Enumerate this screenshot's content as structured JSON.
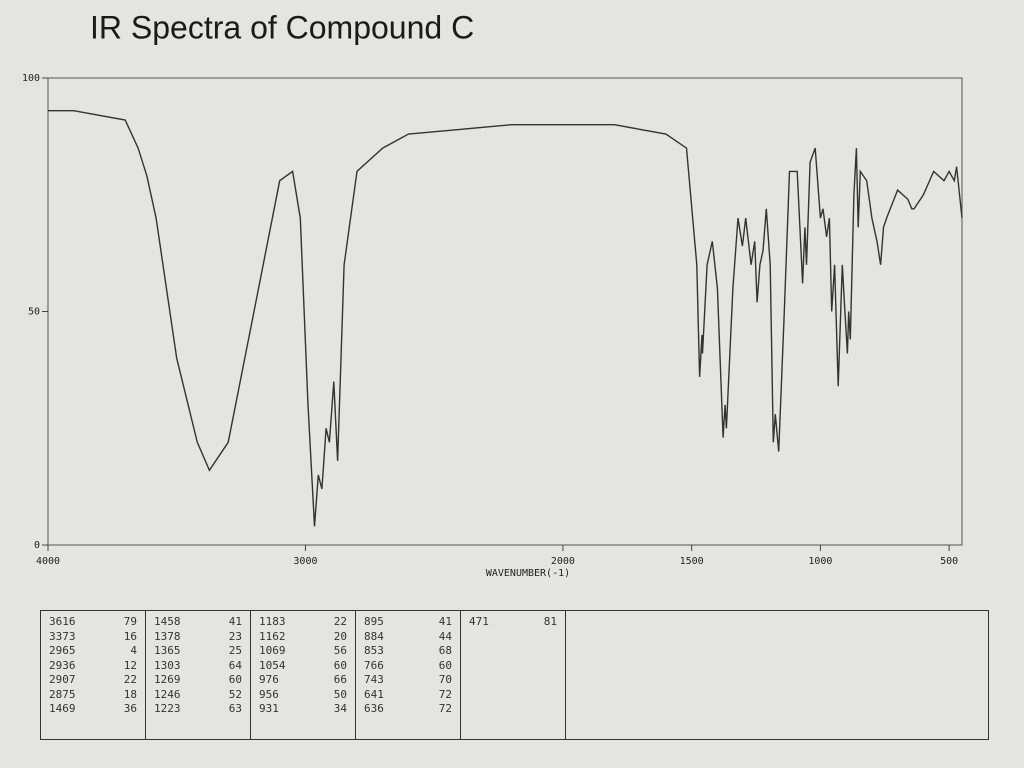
{
  "chart_data": {
    "type": "line",
    "title": "IR Spectra of Compound C",
    "x_label": "WAVENUMBER(-1)",
    "xlim": [
      4000,
      450
    ],
    "xticks": [
      4000,
      3000,
      2000,
      1500,
      1000,
      500
    ],
    "ylim": [
      0,
      100
    ],
    "yticks": [
      0,
      50,
      100
    ],
    "series": [
      {
        "color": "#333333",
        "x": [
          4000,
          3900,
          3700,
          3650,
          3616,
          3580,
          3500,
          3420,
          3373,
          3300,
          3200,
          3100,
          3050,
          3020,
          2990,
          2965,
          2950,
          2936,
          2920,
          2907,
          2890,
          2875,
          2850,
          2800,
          2700,
          2600,
          2400,
          2200,
          2000,
          1800,
          1700,
          1600,
          1520,
          1480,
          1469,
          1460,
          1458,
          1440,
          1420,
          1400,
          1378,
          1370,
          1365,
          1340,
          1320,
          1303,
          1290,
          1269,
          1255,
          1246,
          1235,
          1223,
          1210,
          1195,
          1183,
          1175,
          1162,
          1140,
          1120,
          1090,
          1069,
          1060,
          1054,
          1040,
          1020,
          1000,
          990,
          976,
          965,
          956,
          945,
          931,
          915,
          905,
          895,
          890,
          884,
          870,
          860,
          853,
          845,
          820,
          800,
          780,
          766,
          755,
          743,
          700,
          660,
          645,
          641,
          636,
          600,
          560,
          520,
          500,
          480,
          471,
          450
        ],
        "values": [
          93,
          93,
          91,
          85,
          79,
          70,
          40,
          22,
          16,
          22,
          50,
          78,
          80,
          70,
          30,
          4,
          15,
          12,
          25,
          22,
          35,
          18,
          60,
          80,
          85,
          88,
          89,
          90,
          90,
          90,
          89,
          88,
          85,
          60,
          36,
          45,
          41,
          60,
          65,
          55,
          23,
          30,
          25,
          55,
          70,
          64,
          70,
          60,
          65,
          52,
          60,
          63,
          72,
          60,
          22,
          28,
          20,
          50,
          80,
          80,
          56,
          68,
          60,
          82,
          85,
          70,
          72,
          66,
          70,
          50,
          60,
          34,
          60,
          50,
          41,
          50,
          44,
          75,
          85,
          68,
          80,
          78,
          70,
          65,
          60,
          68,
          70,
          76,
          74,
          72,
          72,
          72,
          75,
          80,
          78,
          80,
          78,
          81,
          70
        ]
      }
    ]
  },
  "peak_table": {
    "columns": [
      [
        [
          3616,
          79
        ],
        [
          3373,
          16
        ],
        [
          2965,
          4
        ],
        [
          2936,
          12
        ],
        [
          2907,
          22
        ],
        [
          2875,
          18
        ],
        [
          1469,
          36
        ]
      ],
      [
        [
          1458,
          41
        ],
        [
          1378,
          23
        ],
        [
          1365,
          25
        ],
        [
          1303,
          64
        ],
        [
          1269,
          60
        ],
        [
          1246,
          52
        ],
        [
          1223,
          63
        ]
      ],
      [
        [
          1183,
          22
        ],
        [
          1162,
          20
        ],
        [
          1069,
          56
        ],
        [
          1054,
          60
        ],
        [
          976,
          66
        ],
        [
          956,
          50
        ],
        [
          931,
          34
        ]
      ],
      [
        [
          895,
          41
        ],
        [
          884,
          44
        ],
        [
          853,
          68
        ],
        [
          766,
          60
        ],
        [
          743,
          70
        ],
        [
          641,
          72
        ],
        [
          636,
          72
        ]
      ],
      [
        [
          471,
          81
        ]
      ]
    ]
  }
}
